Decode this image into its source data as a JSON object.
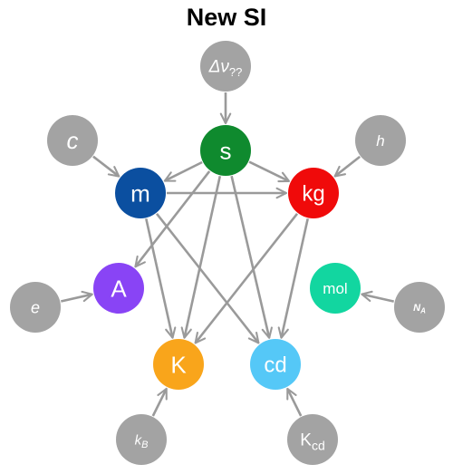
{
  "title": "New SI",
  "colors": {
    "constant_node": "#a3a3a3",
    "arrow": "#9a9a9a",
    "s": "#0f8a2e",
    "m": "#0b4fa0",
    "kg": "#f00a0a",
    "A": "#8944f5",
    "K": "#f9a51b",
    "cd": "#55c8f7",
    "mol": "#12d6a0"
  },
  "units": {
    "s": "s",
    "m": "m",
    "kg": "kg",
    "A": "A",
    "K": "K",
    "cd": "cd",
    "mol": "mol"
  },
  "constants": {
    "dnu": {
      "main": "Δν",
      "sub": "??"
    },
    "c": {
      "main": "c"
    },
    "h": {
      "main": "h"
    },
    "e": {
      "main": "e"
    },
    "NA": {
      "main": "N",
      "sub": "A"
    },
    "kB": {
      "main": "k",
      "sub": "B"
    },
    "Kcd": {
      "main": "K",
      "sub": "cd"
    }
  },
  "edges": [
    [
      "dnu",
      "s"
    ],
    [
      "c",
      "m"
    ],
    [
      "h",
      "kg"
    ],
    [
      "e",
      "A"
    ],
    [
      "NA",
      "mol"
    ],
    [
      "kB",
      "K"
    ],
    [
      "Kcd",
      "cd"
    ],
    [
      "s",
      "m"
    ],
    [
      "s",
      "kg"
    ],
    [
      "s",
      "A"
    ],
    [
      "s",
      "K"
    ],
    [
      "s",
      "cd"
    ],
    [
      "m",
      "kg"
    ],
    [
      "m",
      "K"
    ],
    [
      "m",
      "cd"
    ],
    [
      "kg",
      "K"
    ],
    [
      "kg",
      "cd"
    ]
  ]
}
